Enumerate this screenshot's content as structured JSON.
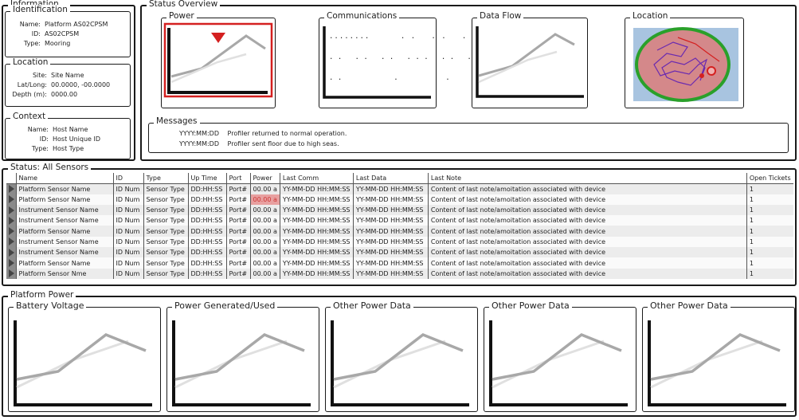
{
  "information": {
    "title": "Information",
    "identification": {
      "title": "Identification",
      "name_label": "Name:",
      "name_value": "Platform AS02CPSM",
      "id_label": "ID:",
      "id_value": "AS02CPSM",
      "type_label": "Type:",
      "type_value": "Mooring"
    },
    "location": {
      "title": "Location",
      "site_label": "Site:",
      "site_value": "Site Name",
      "latlong_label": "Lat/Long:",
      "latlong_value": "00.0000, -00.0000",
      "depth_label": "Depth (m):",
      "depth_value": "0000.00"
    },
    "context": {
      "title": "Context",
      "name_label": "Name:",
      "name_value": "Host Name",
      "id_label": "ID:",
      "id_value": "Host Unique ID",
      "type_label": "Type:",
      "type_value": "Host Type"
    }
  },
  "status_overview": {
    "title": "Status Overview",
    "power_title": "Power",
    "communications_title": "Communications",
    "dataflow_title": "Data Flow",
    "location_title": "Location",
    "comm_rows": [
      "........      . .   . .   .",
      ". .   . .   . .   . . .   . .   .",
      ". .            .           .             ."
    ],
    "messages": {
      "title": "Messages",
      "items": [
        {
          "date": "YYYY:MM:DD",
          "text": "Profiler returned to normal operation."
        },
        {
          "date": "YYYY:MM:DD",
          "text": "Profiler sent floor due to high seas."
        }
      ]
    }
  },
  "sensors": {
    "title": "Status: All Sensors",
    "columns": [
      "Name",
      "ID",
      "Type",
      "Up Time",
      "Port",
      "Power",
      "Last Comm",
      "Last Data",
      "Last Note",
      "Open Tickets"
    ],
    "rows": [
      [
        "Platform Sensor Name",
        "ID Num",
        "Sensor Type",
        "DD:HH:SS",
        "Port#",
        "00.00 a",
        "YY-MM-DD HH:MM:SS",
        "YY-MM-DD HH:MM:SS",
        "Content of last note/amoitation associated with device",
        "1"
      ],
      [
        "Platform Sensor Name",
        "ID Num",
        "Sensor Type",
        "DD:HH:SS",
        "Port#",
        "00.00 a",
        "YY-MM-DD HH:MM:SS",
        "YY-MM-DD HH:MM:SS",
        "Content of last note/amoitation associated with device",
        "1"
      ],
      [
        "Instrument Sensor Name",
        "ID Num",
        "Sensor Type",
        "DD:HH:SS",
        "Port#",
        "00.00 a",
        "YY-MM-DD HH:MM:SS",
        "YY-MM-DD HH:MM:SS",
        "Content of last note/amoitation associated with device",
        "1"
      ],
      [
        "Instrument Sensor Name",
        "ID Num",
        "Sensor Type",
        "DD:HH:SS",
        "Port#",
        "00.00 a",
        "YY-MM-DD HH:MM:SS",
        "YY-MM-DD HH:MM:SS",
        "Content of last note/amoitation associated with device",
        "1"
      ],
      [
        "Platform Sensor Name",
        "ID Num",
        "Sensor Type",
        "DD:HH:SS",
        "Port#",
        "00.00 a",
        "YY-MM-DD HH:MM:SS",
        "YY-MM-DD HH:MM:SS",
        "Content of last note/amoitation associated with device",
        "1"
      ],
      [
        "Instrument Sensor Name",
        "ID Num",
        "Sensor Type",
        "DD:HH:SS",
        "Port#",
        "00.00 a",
        "YY-MM-DD HH:MM:SS",
        "YY-MM-DD HH:MM:SS",
        "Content of last note/amoitation associated with device",
        "1"
      ],
      [
        "Instrument Sensor Name",
        "ID Num",
        "Sensor Type",
        "DD:HH:SS",
        "Port#",
        "00.00 a",
        "YY-MM-DD HH:MM:SS",
        "YY-MM-DD HH:MM:SS",
        "Content of last note/amoitation associated with device",
        "1"
      ],
      [
        "Platform Sensor Name",
        "ID Num",
        "Sensor Type",
        "DD:HH:SS",
        "Port#",
        "00.00 a",
        "YY-MM-DD HH:MM:SS",
        "YY-MM-DD HH:MM:SS",
        "Content of last note/amoitation associated with device",
        "1"
      ],
      [
        "Platform Sensor Nme",
        "ID Num",
        "Sensor Type",
        "DD:HH:SS",
        "Port#",
        "00.00 a",
        "YY-MM-DD HH:MM:SS",
        "YY-MM-DD HH:MM:SS",
        "Content of last note/amoitation associated with device",
        "1"
      ]
    ],
    "warn_cell": {
      "row": 1,
      "col": 5
    }
  },
  "platform_power": {
    "title": "Platform Power",
    "charts": [
      "Battery Voltage",
      "Power Generated/Used",
      "Other Power Data",
      "Other Power Data",
      "Other Power Data"
    ]
  },
  "colors": {
    "alert_red": "#d42020",
    "warn_fill": "#e8a0a0",
    "chart_line_dark": "#a8a8a8",
    "chart_line_light": "#dcdcdc",
    "map_water": "#a8c4e0",
    "map_ring": "#2aa02a",
    "map_fill": "#d4888a",
    "track_purple": "#6a2ab0"
  },
  "icons": {
    "power_alert": "down-triangle-alert-icon",
    "row_selector": "right-triangle-icon"
  }
}
